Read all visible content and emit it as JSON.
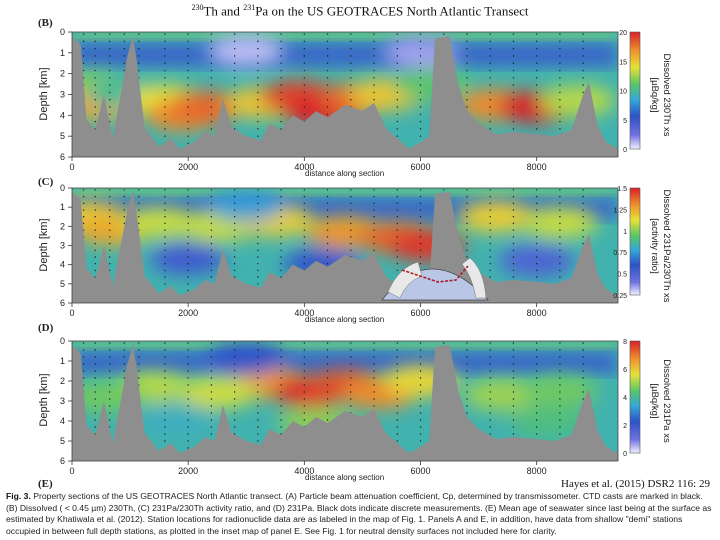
{
  "title": "230Th and 231Pa on the US GEOTRACES North Atlantic Transect",
  "citation": "Hayes et al. (2015) DSR2 116: 29",
  "caption": {
    "fig_label": "Fig. 3.",
    "text": "Property sections of the US GEOTRACES North Atlantic transect. (A) Particle beam attenuation coefficient, Cp, determined by transmissometer. CTD casts are marked in black. (B) Dissolved ( < 0.45 µm) 230Th, (C) 231Pa/230Th activity ratio, and (D) 231Pa. Black dots indicate discrete measurements. (E) Mean age of seawater since last being at the surface as estimated by Khatiwala et al. (2012). Station locations for radionuclide data are as labeled in the map of Fig. 1. Panels A and E, in addition, have data from shallow \"demi\" stations occupied in between full depth stations, as plotted in the inset map of panel E. See Fig. 1 for neutral density surfaces not included here for clarity."
  },
  "chart_data": [
    {
      "type": "heatmap",
      "panel": "(B)",
      "xlabel": "distance along section",
      "ylabel": "Depth [km]",
      "x_ticks": [
        0,
        2000,
        4000,
        6000,
        8000
      ],
      "y_ticks": [
        0,
        1,
        2,
        3,
        4,
        5,
        6
      ],
      "xlim": [
        0,
        9400
      ],
      "ylim": [
        6,
        0
      ],
      "colorbar": {
        "label": "Dissolved 230Th xs [µBq/kg]",
        "ticks": [
          "20",
          "15",
          "10",
          "5",
          "0"
        ],
        "range": [
          0,
          20
        ]
      },
      "cells": [
        {
          "x": 300,
          "d": 2.7,
          "v": 12
        },
        {
          "x": 500,
          "d": 3.5,
          "v": 16
        },
        {
          "x": 900,
          "d": 3.0,
          "v": 10
        },
        {
          "x": 1600,
          "d": 3.3,
          "v": 14
        },
        {
          "x": 1900,
          "d": 4.0,
          "v": 17
        },
        {
          "x": 2300,
          "d": 3.6,
          "v": 18
        },
        {
          "x": 3300,
          "d": 3.4,
          "v": 15
        },
        {
          "x": 3900,
          "d": 3.1,
          "v": 19
        },
        {
          "x": 4300,
          "d": 3.8,
          "v": 20
        },
        {
          "x": 4900,
          "d": 3.2,
          "v": 18
        },
        {
          "x": 5400,
          "d": 3.0,
          "v": 15
        },
        {
          "x": 6200,
          "d": 2.5,
          "v": 11
        },
        {
          "x": 7300,
          "d": 3.5,
          "v": 17
        },
        {
          "x": 8000,
          "d": 3.6,
          "v": 20
        },
        {
          "x": 8700,
          "d": 3.3,
          "v": 13
        },
        {
          "x": 3000,
          "d": 0.9,
          "v": 1
        },
        {
          "x": 6000,
          "d": 1.0,
          "v": 1.5
        }
      ]
    },
    {
      "type": "heatmap",
      "panel": "(C)",
      "xlabel": "distance along section",
      "ylabel": "Depth [km]",
      "x_ticks": [
        0,
        2000,
        4000,
        6000,
        8000
      ],
      "y_ticks": [
        0,
        1,
        2,
        3,
        4,
        5,
        6
      ],
      "xlim": [
        0,
        9400
      ],
      "ylim": [
        6,
        0
      ],
      "colorbar": {
        "label": "Dissolved 231Pa/230Th xs [activity ratio]",
        "ticks": [
          "1.5",
          "1.25",
          "1",
          "0.75",
          "0.5",
          "0.25"
        ],
        "range": [
          0,
          1.5
        ]
      },
      "cells": [
        {
          "x": 300,
          "d": 1.5,
          "v": 1.1
        },
        {
          "x": 700,
          "d": 2.2,
          "v": 1.2
        },
        {
          "x": 1500,
          "d": 1.8,
          "v": 1.0
        },
        {
          "x": 2500,
          "d": 2.0,
          "v": 1.0
        },
        {
          "x": 3500,
          "d": 1.7,
          "v": 1.1
        },
        {
          "x": 4700,
          "d": 2.3,
          "v": 1.25
        },
        {
          "x": 5600,
          "d": 2.6,
          "v": 1.35
        },
        {
          "x": 6100,
          "d": 3.0,
          "v": 1.45
        },
        {
          "x": 7300,
          "d": 1.5,
          "v": 1.1
        },
        {
          "x": 8400,
          "d": 1.8,
          "v": 1.0
        },
        {
          "x": 2000,
          "d": 3.7,
          "v": 0.35
        },
        {
          "x": 4300,
          "d": 4.0,
          "v": 0.4
        },
        {
          "x": 8000,
          "d": 3.8,
          "v": 0.3
        },
        {
          "x": 3000,
          "d": 0.9,
          "v": 0.6
        }
      ]
    },
    {
      "type": "heatmap",
      "panel": "(D)",
      "xlabel": "distance along section",
      "ylabel": "Depth [km]",
      "x_ticks": [
        0,
        2000,
        4000,
        6000,
        8000
      ],
      "y_ticks": [
        0,
        1,
        2,
        3,
        4,
        5,
        6
      ],
      "xlim": [
        0,
        9400
      ],
      "ylim": [
        6,
        0
      ],
      "colorbar": {
        "label": "Dissolved 231Pa xs [µBq/kg]",
        "ticks": [
          "8",
          "6",
          "4",
          "2",
          "0"
        ],
        "range": [
          0,
          8
        ]
      },
      "cells": [
        {
          "x": 3400,
          "d": 2.1,
          "v": 6.5
        },
        {
          "x": 4100,
          "d": 2.5,
          "v": 7.8
        },
        {
          "x": 4700,
          "d": 2.2,
          "v": 7.5
        },
        {
          "x": 5300,
          "d": 2.6,
          "v": 6.8
        },
        {
          "x": 2500,
          "d": 2.6,
          "v": 5.4
        },
        {
          "x": 6000,
          "d": 2.0,
          "v": 5.8
        },
        {
          "x": 1400,
          "d": 2.3,
          "v": 5.2
        },
        {
          "x": 600,
          "d": 2.8,
          "v": 4.6
        },
        {
          "x": 7400,
          "d": 2.7,
          "v": 5.0
        },
        {
          "x": 8400,
          "d": 2.5,
          "v": 4.6
        },
        {
          "x": 1800,
          "d": 3.9,
          "v": 3.6
        },
        {
          "x": 4200,
          "d": 4.1,
          "v": 4.8
        },
        {
          "x": 8200,
          "d": 4.0,
          "v": 4.2
        },
        {
          "x": 3000,
          "d": 0.9,
          "v": 2.2
        }
      ]
    }
  ],
  "next_panel_label": "(E)"
}
